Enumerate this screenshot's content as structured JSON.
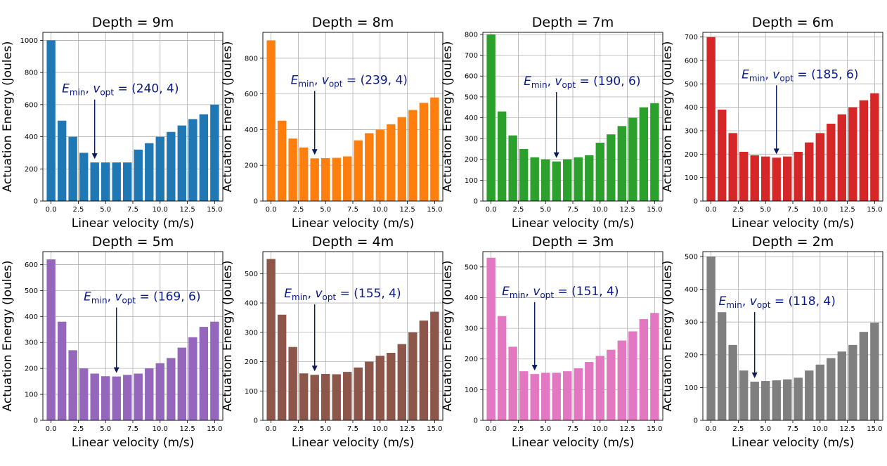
{
  "figure": {
    "annotation_prefix": "E_min, v_opt =",
    "annotation_e": "E",
    "annotation_e_sub": "min",
    "annotation_v": "v",
    "annotation_v_sub": "opt",
    "annotation_eq": " = "
  },
  "chart_data": [
    {
      "type": "bar",
      "title": "Depth = 9m",
      "xlabel": "Linear velocity (m/s)",
      "ylabel": "Actuation Energy (Joules)",
      "color": "#1f77b4",
      "x": [
        0,
        1,
        2,
        3,
        4,
        5,
        6,
        7,
        8,
        9,
        10,
        11,
        12,
        13,
        14,
        15
      ],
      "values": [
        1000,
        500,
        400,
        300,
        240,
        240,
        240,
        240,
        320,
        360,
        400,
        430,
        470,
        510,
        540,
        600
      ],
      "xticks": [
        "0.0",
        "2.5",
        "5.0",
        "7.5",
        "10.0",
        "12.5",
        "15.0"
      ],
      "yticks": [
        "0",
        "200",
        "400",
        "600",
        "800",
        "1000"
      ],
      "ylim": [
        0,
        1050
      ],
      "grid": true,
      "annotation": {
        "text": "(240, 4)",
        "x": 4,
        "y": 240,
        "text_x": 1,
        "text_y": 640
      }
    },
    {
      "type": "bar",
      "title": "Depth = 8m",
      "xlabel": "Linear velocity (m/s)",
      "ylabel": "Actuation Energy (Joules)",
      "color": "#ff7f0e",
      "x": [
        0,
        1,
        2,
        3,
        4,
        5,
        6,
        7,
        8,
        9,
        10,
        11,
        12,
        13,
        14,
        15
      ],
      "values": [
        900,
        450,
        350,
        300,
        239,
        240,
        242,
        250,
        340,
        380,
        400,
        430,
        470,
        510,
        550,
        580
      ],
      "xticks": [
        "0.0",
        "2.5",
        "5.0",
        "7.5",
        "10.0",
        "12.5",
        "15.0"
      ],
      "yticks": [
        "0",
        "200",
        "400",
        "600",
        "800"
      ],
      "ylim": [
        0,
        945
      ],
      "grid": true,
      "annotation": {
        "text": "(239, 4)",
        "x": 4,
        "y": 239,
        "text_x": 1.8,
        "text_y": 625
      }
    },
    {
      "type": "bar",
      "title": "Depth = 7m",
      "xlabel": "Linear velocity (m/s)",
      "ylabel": "Actuation Energy (Joules)",
      "color": "#2ca02c",
      "x": [
        0,
        1,
        2,
        3,
        4,
        5,
        6,
        7,
        8,
        9,
        10,
        11,
        12,
        13,
        14,
        15
      ],
      "values": [
        800,
        430,
        315,
        250,
        210,
        200,
        190,
        200,
        210,
        220,
        280,
        320,
        360,
        400,
        450,
        470
      ],
      "xticks": [
        "0.0",
        "2.5",
        "5.0",
        "7.5",
        "10.0",
        "12.5",
        "15.0"
      ],
      "yticks": [
        "0",
        "100",
        "200",
        "300",
        "400",
        "500",
        "600",
        "700",
        "800"
      ],
      "ylim": [
        0,
        810
      ],
      "grid": true,
      "annotation": {
        "text": "(190, 6)",
        "x": 6,
        "y": 190,
        "text_x": 3,
        "text_y": 530
      }
    },
    {
      "type": "bar",
      "title": "Depth = 6m",
      "xlabel": "Linear velocity (m/s)",
      "ylabel": "Actuation Energy (Joules)",
      "color": "#d62728",
      "x": [
        0,
        1,
        2,
        3,
        4,
        5,
        6,
        7,
        8,
        9,
        10,
        11,
        12,
        13,
        14,
        15
      ],
      "values": [
        700,
        390,
        290,
        210,
        195,
        190,
        185,
        190,
        210,
        250,
        290,
        330,
        370,
        400,
        430,
        460
      ],
      "xticks": [
        "0.0",
        "2.5",
        "5.0",
        "7.5",
        "10.0",
        "12.5",
        "15.0"
      ],
      "yticks": [
        "0",
        "100",
        "200",
        "300",
        "400",
        "500",
        "600",
        "700"
      ],
      "ylim": [
        0,
        720
      ],
      "grid": true,
      "annotation": {
        "text": "(185, 6)",
        "x": 6,
        "y": 185,
        "text_x": 2.8,
        "text_y": 500
      }
    },
    {
      "type": "bar",
      "title": "Depth = 5m",
      "xlabel": "Linear velocity (m/s)",
      "ylabel": "Actuation Energy (Joules)",
      "color": "#9467bd",
      "x": [
        0,
        1,
        2,
        3,
        4,
        5,
        6,
        7,
        8,
        9,
        10,
        11,
        12,
        13,
        14,
        15
      ],
      "values": [
        620,
        380,
        270,
        200,
        180,
        170,
        169,
        175,
        180,
        200,
        220,
        240,
        280,
        320,
        360,
        380
      ],
      "xticks": [
        "0.0",
        "2.5",
        "5.0",
        "7.5",
        "10.0",
        "12.5",
        "15.0"
      ],
      "yticks": [
        "0",
        "100",
        "200",
        "300",
        "400",
        "500",
        "600"
      ],
      "ylim": [
        0,
        650
      ],
      "grid": true,
      "annotation": {
        "text": "(169, 6)",
        "x": 6,
        "y": 169,
        "text_x": 3,
        "text_y": 440
      }
    },
    {
      "type": "bar",
      "title": "Depth = 4m",
      "xlabel": "Linear velocity (m/s)",
      "ylabel": "Actuation Energy (Joules)",
      "color": "#8c564b",
      "x": [
        0,
        1,
        2,
        3,
        4,
        5,
        6,
        7,
        8,
        9,
        10,
        11,
        12,
        13,
        14,
        15
      ],
      "values": [
        550,
        360,
        250,
        160,
        155,
        158,
        157,
        165,
        180,
        200,
        220,
        230,
        260,
        300,
        340,
        370
      ],
      "xticks": [
        "0.0",
        "2.5",
        "5.0",
        "7.5",
        "10.0",
        "12.5",
        "15.0"
      ],
      "yticks": [
        "0",
        "100",
        "200",
        "300",
        "400",
        "500"
      ],
      "ylim": [
        0,
        575
      ],
      "grid": true,
      "annotation": {
        "text": "(155, 4)",
        "x": 4,
        "y": 155,
        "text_x": 1.2,
        "text_y": 400
      }
    },
    {
      "type": "bar",
      "title": "Depth = 3m",
      "xlabel": "Linear velocity (m/s)",
      "ylabel": "Actuation Energy (Joules)",
      "color": "#e377c2",
      "x": [
        0,
        1,
        2,
        3,
        4,
        5,
        6,
        7,
        8,
        9,
        10,
        11,
        12,
        13,
        14,
        15
      ],
      "values": [
        530,
        340,
        240,
        160,
        151,
        155,
        155,
        160,
        170,
        190,
        210,
        230,
        260,
        290,
        330,
        350
      ],
      "xticks": [
        "0.0",
        "2.5",
        "5.0",
        "7.5",
        "10.0",
        "12.5",
        "15.0"
      ],
      "yticks": [
        "0",
        "100",
        "200",
        "300",
        "400",
        "500"
      ],
      "ylim": [
        0,
        550
      ],
      "grid": true,
      "annotation": {
        "text": "(151, 4)",
        "x": 4,
        "y": 151,
        "text_x": 1,
        "text_y": 390
      }
    },
    {
      "type": "bar",
      "title": "Depth = 2m",
      "xlabel": "Linear velocity (m/s)",
      "ylabel": "Actuation Energy (Joules)",
      "color": "#7f7f7f",
      "x": [
        0,
        1,
        2,
        3,
        4,
        5,
        6,
        7,
        8,
        9,
        10,
        11,
        12,
        13,
        14,
        15
      ],
      "values": [
        500,
        330,
        230,
        152,
        118,
        120,
        122,
        125,
        130,
        152,
        170,
        190,
        210,
        230,
        270,
        298
      ],
      "xticks": [
        "0.0",
        "2.5",
        "5.0",
        "7.5",
        "10.0",
        "12.5",
        "15.0"
      ],
      "yticks": [
        "0",
        "100",
        "200",
        "300",
        "400",
        "500"
      ],
      "ylim": [
        0,
        515
      ],
      "grid": true,
      "annotation": {
        "text": "(118, 4)",
        "x": 4,
        "y": 118,
        "text_x": 0.7,
        "text_y": 335
      }
    }
  ]
}
